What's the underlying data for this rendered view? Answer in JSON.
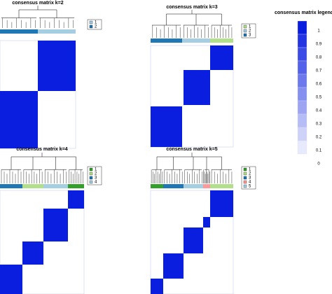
{
  "panels": [
    {
      "title": "consensus matrix k=2",
      "legend": [
        "1",
        "2"
      ]
    },
    {
      "title": "consensus matrix k=3",
      "legend": [
        "1",
        "2",
        "3"
      ]
    },
    {
      "title": "consensus matrix k=4",
      "legend": [
        "1",
        "2",
        "3",
        "4"
      ]
    },
    {
      "title": "consensus matrix k=5",
      "legend": [
        "1",
        "2",
        "3",
        "4",
        "5"
      ]
    }
  ],
  "color_legend": {
    "title": "consensus matrix legend",
    "labels": [
      "1",
      "0.9",
      "0.8",
      "0.7",
      "0.6",
      "0.5",
      "0.4",
      "0.3",
      "0.2",
      "0.1",
      "0"
    ]
  }
}
